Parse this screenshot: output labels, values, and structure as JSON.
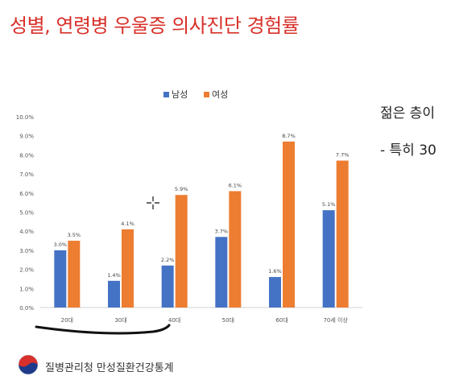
{
  "slide": {
    "title": "성별, 연령병 우울증 의사진단 경험률",
    "side_text_1": "젊은 층이",
    "side_text_2": "- 특히 30",
    "footer_org": "질병관리청 만성질환건강통계"
  },
  "chart_data": {
    "type": "bar",
    "title": "",
    "xlabel": "",
    "ylabel": "",
    "categories": [
      "20대",
      "30대",
      "40대",
      "50대",
      "60대",
      "70세 이상"
    ],
    "series": [
      {
        "name": "남성",
        "color": "#4472c4",
        "values": [
          3.0,
          1.4,
          2.2,
          3.7,
          1.6,
          5.1
        ]
      },
      {
        "name": "여성",
        "color": "#ed7d31",
        "values": [
          3.5,
          4.1,
          5.9,
          6.1,
          8.7,
          7.7
        ]
      }
    ],
    "ylim": [
      0,
      10
    ],
    "yticks": [
      0,
      1,
      2,
      3,
      4,
      5,
      6,
      7,
      8,
      9,
      10
    ],
    "value_suffix": "%",
    "grid": false,
    "legend_position": "top"
  },
  "icons": {
    "logo": "government-emblem-icon",
    "cursor": "crosshair-cursor-icon"
  }
}
